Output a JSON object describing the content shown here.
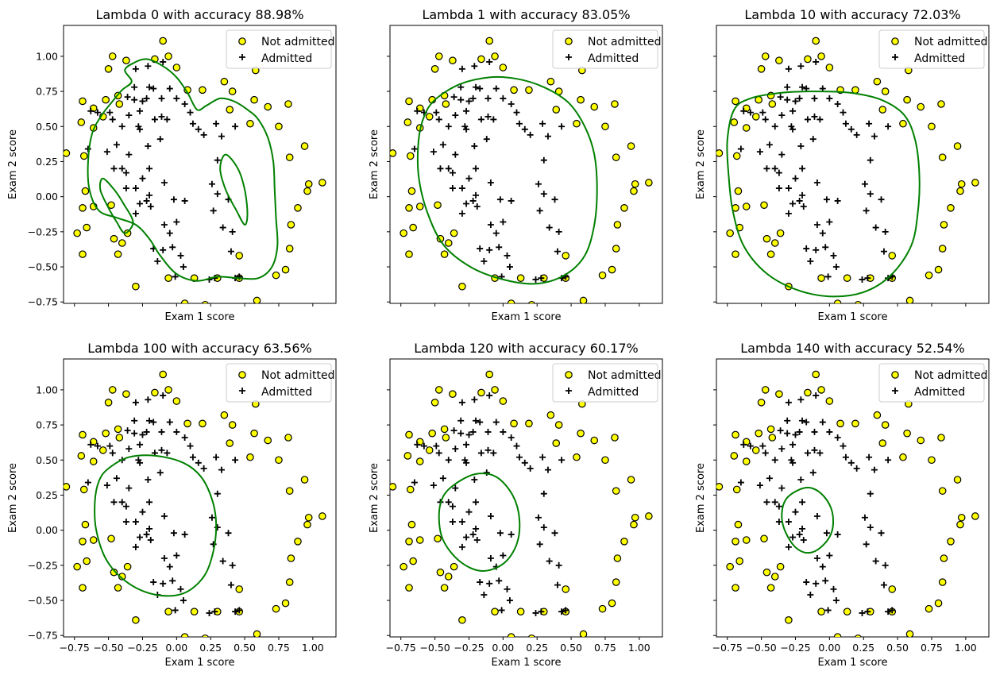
{
  "colors": {
    "not_admitted_fill": "#ffff00",
    "not_admitted_edge": "#000000",
    "admitted": "#000000",
    "boundary": "#008000"
  },
  "chart_data": {
    "type": "scatter",
    "xlim": [
      -0.83,
      1.17
    ],
    "ylim": [
      -0.76,
      1.22
    ],
    "xticks": [
      -0.75,
      -0.5,
      -0.25,
      0.0,
      0.25,
      0.5,
      0.75,
      1.0
    ],
    "xtick_labels": [
      "−0.75",
      "−0.50",
      "−0.25",
      "0.00",
      "0.25",
      "0.50",
      "0.75",
      "1.00"
    ],
    "yticks": [
      -0.75,
      -0.5,
      -0.25,
      0.0,
      0.25,
      0.5,
      0.75,
      1.0
    ],
    "ytick_labels": [
      "−0.75",
      "−0.50",
      "−0.25",
      "0.00",
      "0.25",
      "0.50",
      "0.75",
      "1.00"
    ],
    "xlabel": "Exam 1 score",
    "ylabel": "Exam 2 score",
    "legend": {
      "position": "top-right",
      "entries": [
        "Not admitted",
        "Admitted"
      ]
    },
    "not_admitted": [
      [
        -0.1,
        1.11
      ],
      [
        -0.47,
        1.0
      ],
      [
        -0.5,
        0.91
      ],
      [
        -0.37,
        0.97
      ],
      [
        -0.16,
        0.98
      ],
      [
        -0.06,
        1.0
      ],
      [
        0.0,
        0.92
      ],
      [
        0.08,
        0.76
      ],
      [
        0.19,
        0.76
      ],
      [
        0.35,
        0.82
      ],
      [
        0.41,
        0.75
      ],
      [
        0.58,
        0.9
      ],
      [
        0.57,
        0.69
      ],
      [
        0.67,
        0.64
      ],
      [
        0.82,
        0.66
      ],
      [
        0.39,
        0.62
      ],
      [
        0.75,
        0.5
      ],
      [
        0.54,
        0.52
      ],
      [
        0.94,
        0.36
      ],
      [
        0.83,
        0.28
      ],
      [
        0.97,
        0.09
      ],
      [
        1.07,
        0.1
      ],
      [
        0.96,
        0.04
      ],
      [
        0.89,
        -0.08
      ],
      [
        0.84,
        -0.2
      ],
      [
        0.83,
        -0.37
      ],
      [
        0.8,
        -0.52
      ],
      [
        0.73,
        -0.56
      ],
      [
        0.59,
        -0.74
      ],
      [
        0.46,
        -0.58
      ],
      [
        0.46,
        -0.42
      ],
      [
        0.3,
        -0.58
      ],
      [
        0.13,
        -0.58
      ],
      [
        0.06,
        -0.76
      ],
      [
        0.21,
        -0.77
      ],
      [
        -0.06,
        -0.58
      ],
      [
        -0.3,
        -0.64
      ],
      [
        -0.4,
        -0.33
      ],
      [
        -0.36,
        -0.26
      ],
      [
        -0.46,
        -0.3
      ],
      [
        -0.43,
        -0.41
      ],
      [
        -0.69,
        -0.41
      ],
      [
        -0.73,
        -0.26
      ],
      [
        -0.66,
        -0.22
      ],
      [
        -0.69,
        -0.08
      ],
      [
        -0.67,
        0.04
      ],
      [
        -0.61,
        -0.07
      ],
      [
        -0.48,
        -0.06
      ],
      [
        -0.81,
        0.31
      ],
      [
        -0.68,
        0.29
      ],
      [
        -0.7,
        0.53
      ],
      [
        -0.61,
        0.49
      ],
      [
        -0.54,
        0.57
      ],
      [
        -0.52,
        0.69
      ],
      [
        -0.42,
        0.66
      ],
      [
        -0.69,
        0.68
      ],
      [
        -0.43,
        0.72
      ],
      [
        -0.61,
        0.63
      ]
    ],
    "admitted": [
      [
        -0.1,
        0.96
      ],
      [
        -0.3,
        0.91
      ],
      [
        -0.21,
        0.93
      ],
      [
        -0.2,
        0.78
      ],
      [
        -0.05,
        0.77
      ],
      [
        -0.17,
        0.77
      ],
      [
        -0.31,
        0.78
      ],
      [
        -0.36,
        0.71
      ],
      [
        -0.31,
        0.69
      ],
      [
        -0.25,
        0.68
      ],
      [
        -0.22,
        0.7
      ],
      [
        -0.11,
        0.7
      ],
      [
        -0.16,
        0.55
      ],
      [
        -0.07,
        0.55
      ],
      [
        -0.27,
        0.61
      ],
      [
        -0.35,
        0.58
      ],
      [
        -0.47,
        0.55
      ],
      [
        -0.63,
        0.61
      ],
      [
        -0.58,
        0.6
      ],
      [
        -0.49,
        0.6
      ],
      [
        -0.4,
        0.5
      ],
      [
        -0.28,
        0.5
      ],
      [
        -0.27,
        0.48
      ],
      [
        -0.11,
        0.57
      ],
      [
        0.0,
        0.7
      ],
      [
        0.06,
        0.66
      ],
      [
        0.1,
        0.6
      ],
      [
        0.12,
        0.52
      ],
      [
        0.16,
        0.48
      ],
      [
        0.2,
        0.44
      ],
      [
        0.29,
        0.52
      ],
      [
        0.43,
        0.5
      ],
      [
        0.33,
        0.43
      ],
      [
        0.3,
        0.26
      ],
      [
        0.26,
        0.09
      ],
      [
        0.3,
        0.02
      ],
      [
        0.27,
        -0.1
      ],
      [
        0.38,
        -0.02
      ],
      [
        0.34,
        -0.22
      ],
      [
        0.41,
        -0.25
      ],
      [
        0.4,
        -0.39
      ],
      [
        0.43,
        -0.58
      ],
      [
        0.46,
        -0.57
      ],
      [
        0.24,
        -0.59
      ],
      [
        0.28,
        -0.58
      ],
      [
        0.03,
        -0.42
      ],
      [
        -0.1,
        -0.38
      ],
      [
        -0.14,
        -0.46
      ],
      [
        0.05,
        -0.5
      ],
      [
        -0.09,
        -0.2
      ],
      [
        0.0,
        -0.18
      ],
      [
        -0.05,
        -0.26
      ],
      [
        -0.03,
        -0.36
      ],
      [
        -0.3,
        -0.12
      ],
      [
        -0.19,
        -0.07
      ],
      [
        -0.27,
        -0.05
      ],
      [
        -0.2,
        0.01
      ],
      [
        -0.3,
        0.06
      ],
      [
        -0.37,
        0.06
      ],
      [
        -0.37,
        0.17
      ],
      [
        -0.25,
        0.13
      ],
      [
        -0.22,
        -0.03
      ],
      [
        -0.46,
        0.2
      ],
      [
        -0.4,
        0.2
      ],
      [
        -0.65,
        0.34
      ],
      [
        -0.51,
        0.32
      ],
      [
        -0.44,
        0.37
      ],
      [
        -0.35,
        0.3
      ],
      [
        -0.21,
        0.36
      ],
      [
        -0.12,
        0.41
      ],
      [
        -0.2,
        0.2
      ],
      [
        -0.09,
        0.1
      ],
      [
        -0.17,
        -0.37
      ],
      [
        -0.01,
        -0.57
      ],
      [
        -0.02,
        -0.02
      ],
      [
        0.06,
        -0.03
      ]
    ],
    "panels": [
      {
        "title": "Lambda 0 with accuracy 88.98%",
        "lambda": 0,
        "accuracy": 88.98,
        "boundary": [
          [
            [
              -0.55,
              0.58
            ],
            [
              -0.47,
              0.68
            ],
            [
              -0.4,
              0.76
            ],
            [
              -0.33,
              0.82
            ],
            [
              -0.38,
              0.9
            ],
            [
              -0.32,
              0.95
            ],
            [
              -0.22,
              0.98
            ],
            [
              -0.1,
              0.93
            ],
            [
              0.0,
              0.85
            ],
            [
              0.08,
              0.74
            ],
            [
              0.15,
              0.62
            ],
            [
              0.22,
              0.65
            ],
            [
              0.32,
              0.7
            ],
            [
              0.42,
              0.68
            ],
            [
              0.52,
              0.62
            ],
            [
              0.6,
              0.55
            ],
            [
              0.67,
              0.42
            ],
            [
              0.71,
              0.25
            ],
            [
              0.72,
              0.05
            ],
            [
              0.73,
              -0.15
            ],
            [
              0.74,
              -0.35
            ],
            [
              0.7,
              -0.5
            ],
            [
              0.6,
              -0.58
            ],
            [
              0.45,
              -0.58
            ],
            [
              0.3,
              -0.57
            ],
            [
              0.15,
              -0.6
            ],
            [
              0.0,
              -0.55
            ],
            [
              -0.12,
              -0.42
            ],
            [
              -0.2,
              -0.3
            ],
            [
              -0.3,
              -0.2
            ],
            [
              -0.44,
              -0.15
            ],
            [
              -0.57,
              -0.1
            ],
            [
              -0.64,
              0.05
            ],
            [
              -0.65,
              0.25
            ],
            [
              -0.62,
              0.45
            ],
            [
              -0.55,
              0.58
            ]
          ],
          [
            [
              -0.38,
              -0.26
            ],
            [
              -0.32,
              -0.18
            ],
            [
              -0.39,
              -0.05
            ],
            [
              -0.45,
              0.04
            ],
            [
              -0.54,
              0.13
            ],
            [
              -0.56,
              0.05
            ],
            [
              -0.5,
              -0.08
            ],
            [
              -0.44,
              -0.18
            ],
            [
              -0.38,
              -0.26
            ]
          ],
          [
            [
              0.36,
              0.3
            ],
            [
              0.45,
              0.2
            ],
            [
              0.5,
              0.05
            ],
            [
              0.52,
              -0.12
            ],
            [
              0.5,
              -0.2
            ],
            [
              0.44,
              -0.1
            ],
            [
              0.36,
              0.05
            ],
            [
              0.32,
              0.2
            ],
            [
              0.36,
              0.3
            ]
          ]
        ]
      },
      {
        "title": "Lambda 1 with accuracy 83.05%",
        "lambda": 1,
        "accuracy": 83.05,
        "boundary": [
          [
            [
              -0.5,
              0.69
            ],
            [
              -0.32,
              0.8
            ],
            [
              -0.1,
              0.85
            ],
            [
              0.1,
              0.84
            ],
            [
              0.3,
              0.78
            ],
            [
              0.48,
              0.67
            ],
            [
              0.6,
              0.5
            ],
            [
              0.67,
              0.3
            ],
            [
              0.69,
              0.05
            ],
            [
              0.67,
              -0.2
            ],
            [
              0.6,
              -0.42
            ],
            [
              0.45,
              -0.56
            ],
            [
              0.24,
              -0.62
            ],
            [
              0.0,
              -0.59
            ],
            [
              -0.24,
              -0.5
            ],
            [
              -0.44,
              -0.34
            ],
            [
              -0.56,
              -0.1
            ],
            [
              -0.62,
              0.15
            ],
            [
              -0.62,
              0.4
            ],
            [
              -0.58,
              0.57
            ],
            [
              -0.5,
              0.69
            ]
          ]
        ]
      },
      {
        "title": "Lambda 10 with accuracy 72.03%",
        "lambda": 10,
        "accuracy": 72.03,
        "boundary": [
          [
            [
              -0.7,
              0.62
            ],
            [
              -0.58,
              0.7
            ],
            [
              -0.35,
              0.74
            ],
            [
              -0.1,
              0.75
            ],
            [
              0.15,
              0.74
            ],
            [
              0.38,
              0.69
            ],
            [
              0.55,
              0.58
            ],
            [
              0.63,
              0.4
            ],
            [
              0.66,
              0.15
            ],
            [
              0.65,
              -0.1
            ],
            [
              0.6,
              -0.35
            ],
            [
              0.45,
              -0.56
            ],
            [
              0.25,
              -0.68
            ],
            [
              0.0,
              -0.71
            ],
            [
              -0.25,
              -0.66
            ],
            [
              -0.47,
              -0.54
            ],
            [
              -0.63,
              -0.35
            ],
            [
              -0.71,
              -0.1
            ],
            [
              -0.74,
              0.15
            ],
            [
              -0.75,
              0.4
            ],
            [
              -0.7,
              0.62
            ]
          ]
        ]
      },
      {
        "title": "Lambda 100 with accuracy 63.56%",
        "lambda": 100,
        "accuracy": 63.56,
        "boundary": [
          [
            [
              -0.5,
              0.44
            ],
            [
              -0.35,
              0.52
            ],
            [
              -0.15,
              0.53
            ],
            [
              0.05,
              0.48
            ],
            [
              0.18,
              0.38
            ],
            [
              0.26,
              0.22
            ],
            [
              0.29,
              0.05
            ],
            [
              0.27,
              -0.15
            ],
            [
              0.2,
              -0.33
            ],
            [
              0.05,
              -0.45
            ],
            [
              -0.15,
              -0.46
            ],
            [
              -0.35,
              -0.38
            ],
            [
              -0.51,
              -0.22
            ],
            [
              -0.59,
              0.0
            ],
            [
              -0.6,
              0.2
            ],
            [
              -0.57,
              0.35
            ],
            [
              -0.5,
              0.44
            ]
          ]
        ]
      },
      {
        "title": "Lambda 120 with accuracy 60.17%",
        "lambda": 120,
        "accuracy": 60.17,
        "boundary": [
          [
            [
              -0.35,
              0.33
            ],
            [
              -0.2,
              0.4
            ],
            [
              -0.05,
              0.38
            ],
            [
              0.07,
              0.25
            ],
            [
              0.12,
              0.08
            ],
            [
              0.1,
              -0.1
            ],
            [
              0.0,
              -0.24
            ],
            [
              -0.16,
              -0.29
            ],
            [
              -0.32,
              -0.22
            ],
            [
              -0.44,
              -0.07
            ],
            [
              -0.47,
              0.1
            ],
            [
              -0.44,
              0.24
            ],
            [
              -0.35,
              0.33
            ]
          ]
        ]
      },
      {
        "title": "Lambda 140 with accuracy 52.54%",
        "lambda": 140,
        "accuracy": 52.54,
        "boundary": [
          [
            [
              -0.22,
              0.29
            ],
            [
              -0.13,
              0.3
            ],
            [
              -0.04,
              0.24
            ],
            [
              0.02,
              0.13
            ],
            [
              0.02,
              0.0
            ],
            [
              -0.04,
              -0.1
            ],
            [
              -0.14,
              -0.16
            ],
            [
              -0.24,
              -0.13
            ],
            [
              -0.32,
              -0.02
            ],
            [
              -0.35,
              0.1
            ],
            [
              -0.32,
              0.22
            ],
            [
              -0.22,
              0.29
            ]
          ]
        ]
      }
    ]
  }
}
